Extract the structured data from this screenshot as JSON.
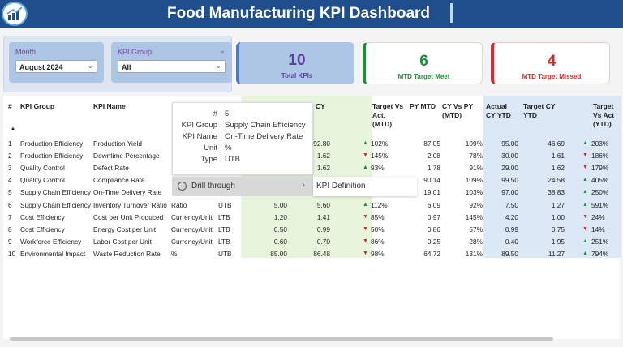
{
  "header": {
    "title": "Food Manufacturing KPI Dashboard"
  },
  "filters": {
    "month": {
      "label": "Month",
      "value": "August 2024"
    },
    "kpi_group": {
      "label": "KPI Group",
      "value": "All"
    }
  },
  "cards": {
    "total": {
      "value": "10",
      "label": "Total KPIs",
      "color": "#5a3fa0"
    },
    "met": {
      "value": "6",
      "label": "MTD Target Meet",
      "color": "#1e8c3a"
    },
    "missed": {
      "value": "4",
      "label": "MTD Target Missed",
      "color": "#d32a2a"
    }
  },
  "table": {
    "headers": {
      "num": "#",
      "group": "KPI Group",
      "name": "KPI Name",
      "cy": "CY",
      "tgt_vs": [
        "Target Vs",
        "Act.",
        "(MTD)"
      ],
      "py": "PY MTD",
      "cy_vs_py": [
        "CY Vs PY",
        "(MTD)"
      ],
      "actual_ytd": [
        "Actual",
        "CY YTD"
      ],
      "target_ytd": [
        "Target CY",
        "YTD"
      ],
      "tgt_vs_ytd": [
        "Target",
        "Vs Act",
        "(YTD)"
      ]
    },
    "rows": [
      {
        "n": "1",
        "group": "Production Efficiency",
        "name": "Production Yield",
        "unit": "",
        "type": "",
        "tgt": "",
        "cy": "92.80",
        "dir": "up",
        "tva": "102%",
        "py": "87.05",
        "cvp": "109%",
        "aytd": "95.00",
        "tytd": "46.69",
        "ydir": "up",
        "tvay": "203%"
      },
      {
        "n": "2",
        "group": "Production Efficiency",
        "name": "Downtime Percentage",
        "unit": "",
        "type": "",
        "tgt": "",
        "cy": "1.62",
        "dir": "down",
        "tva": "145%",
        "py": "2.08",
        "cvp": "78%",
        "aytd": "30.00",
        "tytd": "1.61",
        "ydir": "down",
        "tvay": "186%"
      },
      {
        "n": "3",
        "group": "Quality Control",
        "name": "Defect Rate",
        "unit": "",
        "type": "",
        "tgt": "",
        "cy": "1.62",
        "dir": "up",
        "tva": "93%",
        "py": "1.78",
        "cvp": "91%",
        "aytd": "29.00",
        "tytd": "1.62",
        "ydir": "down",
        "tvay": "179%"
      },
      {
        "n": "4",
        "group": "Quality Control",
        "name": "Compliance Rate",
        "unit": "",
        "type": "",
        "tgt": "",
        "cy": "",
        "dir": "",
        "tva": "",
        "py": "90.14",
        "cvp": "109%",
        "aytd": "99.50",
        "tytd": "24.58",
        "ydir": "up",
        "tvay": "405%"
      },
      {
        "n": "5",
        "group": "Supply Chain Efficiency",
        "name": "On-Time Delivery Rate",
        "unit": "",
        "type": "",
        "tgt": "",
        "cy": "",
        "dir": "",
        "tva": "",
        "py": "19.01",
        "cvp": "103%",
        "aytd": "97.00",
        "tytd": "38.83",
        "ydir": "up",
        "tvay": "250%"
      },
      {
        "n": "6",
        "group": "Supply Chain Efficiency",
        "name": "Inventory Turnover Ratio",
        "unit": "Ratio",
        "type": "UTB",
        "tgt": "5.00",
        "cy": "5.60",
        "dir": "up",
        "tva": "112%",
        "py": "6.09",
        "cvp": "92%",
        "aytd": "7.50",
        "tytd": "1.27",
        "ydir": "up",
        "tvay": "591%"
      },
      {
        "n": "7",
        "group": "Cost Efficiency",
        "name": "Cost per Unit Produced",
        "unit": "Currency/Unit",
        "type": "LTB",
        "tgt": "1.20",
        "cy": "1.41",
        "dir": "down",
        "tva": "85%",
        "py": "0.97",
        "cvp": "145%",
        "aytd": "4.20",
        "tytd": "1.00",
        "ydir": "down",
        "tvay": "24%"
      },
      {
        "n": "8",
        "group": "Cost Efficiency",
        "name": "Energy Cost per Unit",
        "unit": "Currency/Unit",
        "type": "LTB",
        "tgt": "0.50",
        "cy": "0.99",
        "dir": "down",
        "tva": "50%",
        "py": "0.86",
        "cvp": "57%",
        "aytd": "0.99",
        "tytd": "0.75",
        "ydir": "down",
        "tvay": "14%"
      },
      {
        "n": "9",
        "group": "Workforce Efficiency",
        "name": "Labor Cost per Unit",
        "unit": "Currency/Unit",
        "type": "LTB",
        "tgt": "0.60",
        "cy": "0.70",
        "dir": "down",
        "tva": "86%",
        "py": "0.25",
        "cvp": "28%",
        "aytd": "0.40",
        "tytd": "1.95",
        "ydir": "up",
        "tvay": "251%"
      },
      {
        "n": "10",
        "group": "Environmental Impact",
        "name": "Waste Reduction Rate",
        "unit": "%",
        "type": "UTB",
        "tgt": "85.00",
        "cy": "86.48",
        "dir": "down",
        "tva": "98%",
        "py": "64.72",
        "cvp": "131%",
        "aytd": "89.50",
        "tytd": "11.27",
        "ydir": "up",
        "tvay": "794%"
      }
    ]
  },
  "tooltip": {
    "fields": [
      {
        "k": "#",
        "v": "5"
      },
      {
        "k": "KPI Group",
        "v": "Supply Chain Efficiency"
      },
      {
        "k": "KPI Name",
        "v": "On-Time Delivery Rate"
      },
      {
        "k": "Unit",
        "v": "%"
      },
      {
        "k": "Type",
        "v": "UTB"
      }
    ]
  },
  "context_menu": {
    "item": "Drill through",
    "submenu": "KPI Definition"
  }
}
